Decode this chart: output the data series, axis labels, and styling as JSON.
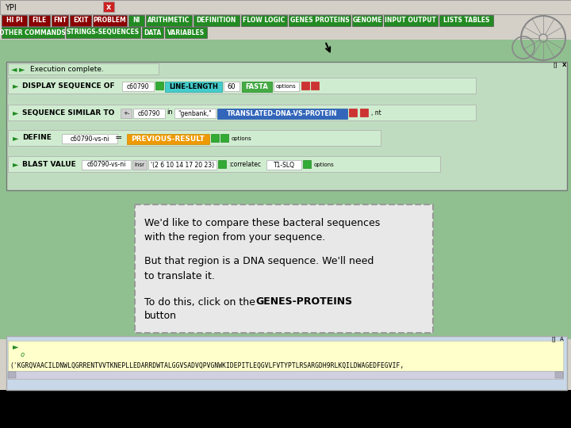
{
  "title_bar_text": "YPI",
  "title_bar_bg": "#d4d0c8",
  "menu_row1": [
    {
      "text": "HI PI",
      "bg": "#8b0000",
      "fg": "white"
    },
    {
      "text": "FILE",
      "bg": "#8b0000",
      "fg": "white"
    },
    {
      "text": "FNT",
      "bg": "#8b0000",
      "fg": "white"
    },
    {
      "text": "EXIT",
      "bg": "#8b0000",
      "fg": "white"
    },
    {
      "text": "PROBLEM",
      "bg": "#8b0000",
      "fg": "white"
    },
    {
      "text": "NI",
      "bg": "#228b22",
      "fg": "white"
    },
    {
      "text": "ARITHMETIC",
      "bg": "#228b22",
      "fg": "white"
    },
    {
      "text": "DEFINITION",
      "bg": "#228b22",
      "fg": "white"
    },
    {
      "text": "FLOW LOGIC",
      "bg": "#228b22",
      "fg": "white"
    },
    {
      "text": "GENES PROTEINS",
      "bg": "#228b22",
      "fg": "white"
    },
    {
      "text": "GENOME",
      "bg": "#228b22",
      "fg": "white"
    },
    {
      "text": "INPUT OUTPUT",
      "bg": "#228b22",
      "fg": "white"
    },
    {
      "text": "LISTS TABLES",
      "bg": "#228b22",
      "fg": "white"
    }
  ],
  "menu_row2": [
    {
      "text": "OTHER COMMANDS",
      "bg": "#228b22",
      "fg": "white"
    },
    {
      "text": "STRINGS-SEQUENCES",
      "bg": "#228b22",
      "fg": "white"
    },
    {
      "text": "DATA",
      "bg": "#228b22",
      "fg": "white"
    },
    {
      "text": "VARIABLES",
      "bg": "#228b22",
      "fg": "white"
    }
  ],
  "main_bg": "#90c090",
  "execution_text": "Execution complete.",
  "dna_sequence_text": "('KGRQVAACILDNWLQGRRENTVVTKNEPLLEDARRDWTALGGVSADVQPVGNWKIDEPITLEQGVLFVTYPTLRSARGDH9RLKQILDWAGEDFEGVIF,",
  "dialog_text_line1": "We'd like to compare these bacteral sequences",
  "dialog_text_line2": "with the region from your sequence.",
  "dialog_text_line3": "But that region is a DNA sequence. We'll need",
  "dialog_text_line4": "to translate it.",
  "dialog_text_line5": "To do this, click on the ",
  "dialog_text_line5_bold": "GENES-PROTEINS",
  "dialog_text_line6": "button",
  "dialog_bg": "#e8e8e8",
  "output_panel_bg": "#ffffcc",
  "bottom_panel_bg": "#c8d8e8"
}
